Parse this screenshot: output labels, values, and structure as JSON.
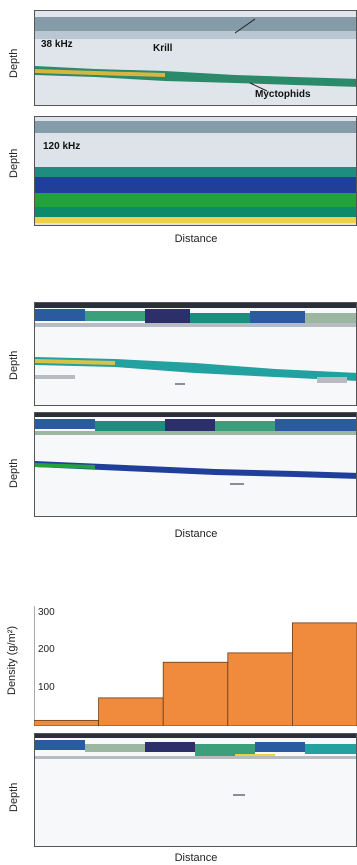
{
  "figure": {
    "axis_labels": {
      "depth": "Depth",
      "distance": "Distance",
      "density": "Density (g/m²)"
    },
    "frequencies": [
      "38 kHz",
      "120 kHz"
    ],
    "annotations": [
      "Krill",
      "Myctophids"
    ]
  },
  "chart_data": {
    "type": "bar",
    "ylabel": "Density (g/m²)",
    "xlabel": "Distance",
    "yticks": [
      100,
      200,
      300
    ],
    "ylim": [
      0,
      320
    ],
    "values": [
      15,
      75,
      170,
      195,
      275
    ],
    "colors": {
      "bar": "#f08a3c",
      "bar_edge": "#6a3a12"
    }
  },
  "palette": {
    "deep_blue": "#1f3f9a",
    "teal": "#1f8c80",
    "green": "#23a23a",
    "yellow": "#e8d24a",
    "grey": "#b7bcc2",
    "dark": "#2a2f3a"
  }
}
